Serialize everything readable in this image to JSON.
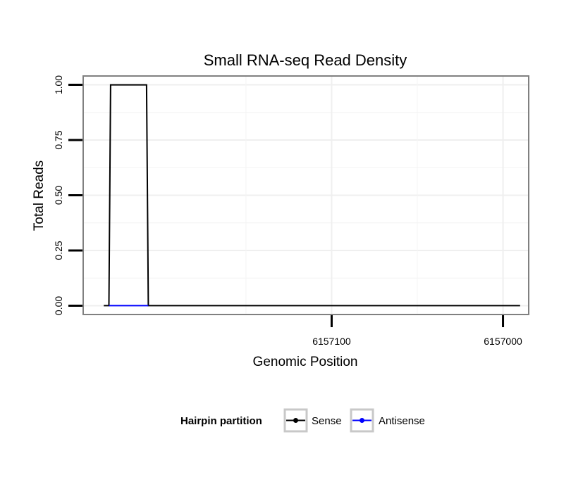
{
  "chart_data": {
    "type": "line",
    "title": "Small RNA-seq Read Density",
    "xlabel": "Genomic Position",
    "ylabel": "Total Reads",
    "x_reversed": true,
    "xlim": [
      6157245,
      6156985
    ],
    "ylim": [
      -0.04,
      1.04
    ],
    "x_ticks": [
      6157100,
      6157000
    ],
    "x_tick_labels": [
      "6157100",
      "6157000"
    ],
    "y_ticks": [
      0,
      0.25,
      0.5,
      0.75,
      1
    ],
    "y_tick_labels": [
      "0.00",
      "0.25",
      "0.50",
      "0.75",
      "1.00"
    ],
    "grid": true,
    "legend_position": "bottom",
    "legend_title": "Hairpin partition",
    "colors": {
      "Sense": "#000000",
      "Antisense": "#0000ff"
    },
    "series": [
      {
        "name": "Sense",
        "x": [
          6157233,
          6157230,
          6157229,
          6157208,
          6157207,
          6157205,
          6156990
        ],
        "y": [
          0,
          0,
          1,
          1,
          0,
          0,
          0
        ]
      },
      {
        "name": "Antisense",
        "x": [
          6157230,
          6157207
        ],
        "y": [
          0,
          0
        ]
      }
    ]
  }
}
